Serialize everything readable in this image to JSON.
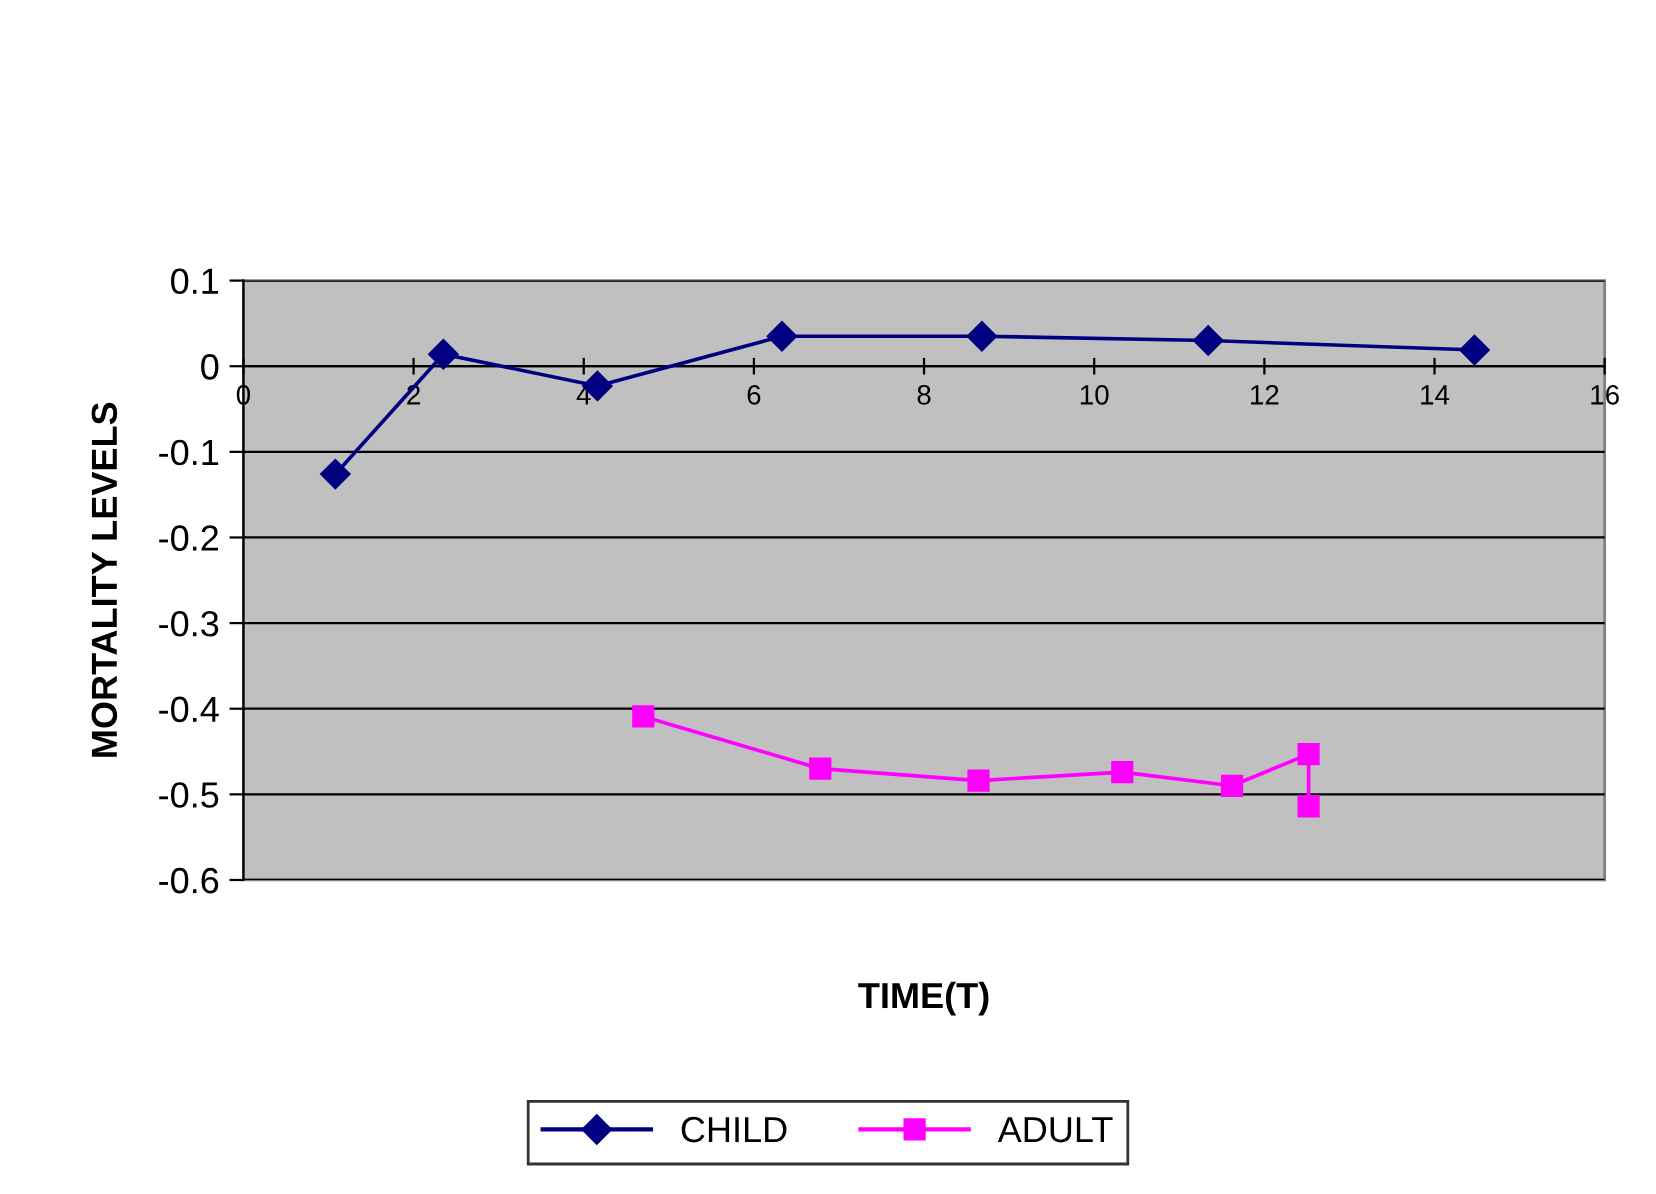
{
  "chart_data": {
    "type": "line",
    "xlabel": "TIME(T)",
    "ylabel": "MORTALITY LEVELS",
    "xlim": [
      0,
      16
    ],
    "xticks": [
      0,
      2,
      4,
      6,
      8,
      10,
      12,
      14,
      16
    ],
    "ylim": [
      -0.6,
      0.1
    ],
    "yticks": [
      -0.6,
      -0.5,
      -0.4,
      -0.3,
      -0.2,
      -0.1,
      0,
      0.1
    ],
    "grid": "y",
    "legend": "bottom",
    "line_style": "solid",
    "series": [
      {
        "name": "CHILD",
        "color": "#000080",
        "marker": "diamond",
        "x": [
          1.08,
          2.35,
          4.16,
          6.33,
          8.68,
          11.34,
          14.47
        ],
        "values": [
          -0.126,
          0.014,
          -0.023,
          0.035,
          0.035,
          0.03,
          0.019
        ]
      },
      {
        "name": "ADULT",
        "color": "#ff00ff",
        "marker": "square",
        "x": [
          4.7,
          6.78,
          8.64,
          10.33,
          11.62,
          12.52,
          12.52
        ],
        "values": [
          -0.409,
          -0.47,
          -0.484,
          -0.474,
          -0.49,
          -0.453,
          -0.514
        ]
      }
    ]
  }
}
